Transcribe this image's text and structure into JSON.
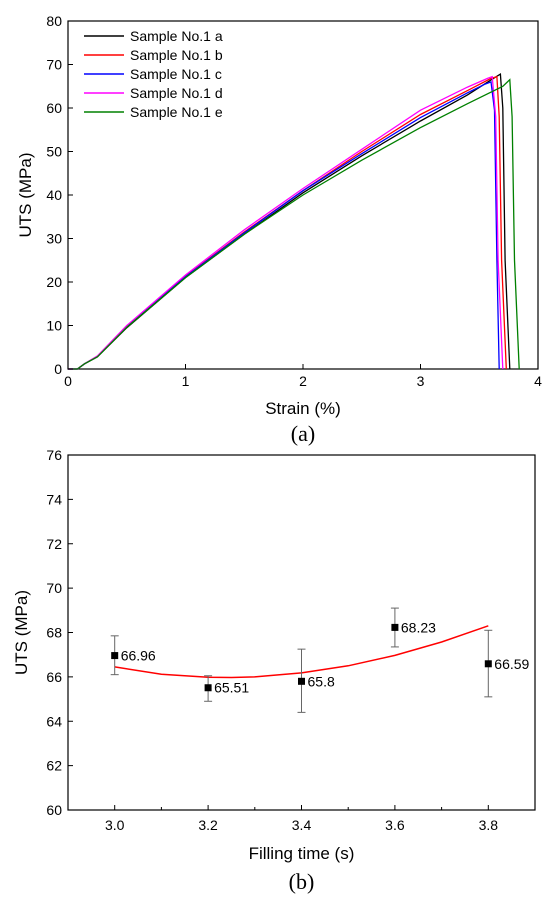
{
  "chart_data": [
    {
      "type": "line",
      "caption": "(a)",
      "xlabel": "Strain (%)",
      "ylabel": "UTS (MPa)",
      "xlim": [
        0,
        4
      ],
      "ylim": [
        0,
        80
      ],
      "xticks": [
        0,
        1,
        2,
        3,
        4
      ],
      "yticks": [
        0,
        10,
        20,
        30,
        40,
        50,
        60,
        70,
        80
      ],
      "grid": false,
      "legend_position": "top-left",
      "series": [
        {
          "name": "Sample No.1 a",
          "color": "#000000",
          "x": [
            0.0,
            0.08,
            0.14,
            0.25,
            0.5,
            1.0,
            1.5,
            2.0,
            2.5,
            3.0,
            3.4,
            3.62,
            3.68,
            3.7,
            3.72,
            3.76
          ],
          "y": [
            0.0,
            0.0,
            1.2,
            2.8,
            9.5,
            21.0,
            31.0,
            40.5,
            49.0,
            57.0,
            63.0,
            66.8,
            67.8,
            60.0,
            25.0,
            0.0
          ]
        },
        {
          "name": "Sample No.1 b",
          "color": "#ff0000",
          "x": [
            0.0,
            0.08,
            0.14,
            0.25,
            0.5,
            1.0,
            1.5,
            2.0,
            2.5,
            3.0,
            3.4,
            3.6,
            3.65,
            3.67,
            3.69,
            3.73
          ],
          "y": [
            0.0,
            0.0,
            1.2,
            2.9,
            9.8,
            21.3,
            31.5,
            41.0,
            50.0,
            58.5,
            64.0,
            66.8,
            67.2,
            58.0,
            25.0,
            0.0
          ]
        },
        {
          "name": "Sample No.1 c",
          "color": "#0000ff",
          "x": [
            0.0,
            0.08,
            0.14,
            0.25,
            0.5,
            1.0,
            1.5,
            2.0,
            2.5,
            3.0,
            3.4,
            3.55,
            3.6,
            3.63,
            3.65,
            3.67
          ],
          "y": [
            0.0,
            0.0,
            1.2,
            2.9,
            9.7,
            21.2,
            31.3,
            41.0,
            49.5,
            57.8,
            63.5,
            65.5,
            66.0,
            59.5,
            25.0,
            0.0
          ]
        },
        {
          "name": "Sample No.1 d",
          "color": "#ff00ff",
          "x": [
            0.0,
            0.08,
            0.14,
            0.25,
            0.5,
            1.0,
            1.5,
            2.0,
            2.5,
            3.0,
            3.4,
            3.57,
            3.61,
            3.64,
            3.66,
            3.7
          ],
          "y": [
            0.0,
            0.0,
            1.2,
            3.0,
            10.0,
            21.6,
            32.0,
            41.5,
            50.5,
            59.5,
            64.8,
            66.8,
            67.2,
            58.0,
            25.0,
            0.0
          ]
        },
        {
          "name": "Sample No.1 e",
          "color": "#008000",
          "x": [
            0.0,
            0.08,
            0.14,
            0.25,
            0.5,
            1.0,
            1.5,
            2.0,
            2.5,
            3.0,
            3.4,
            3.7,
            3.76,
            3.78,
            3.8,
            3.84
          ],
          "y": [
            0.0,
            0.0,
            1.2,
            2.8,
            9.6,
            21.0,
            31.0,
            40.0,
            48.0,
            55.5,
            61.0,
            65.0,
            66.5,
            58.0,
            25.0,
            0.0
          ]
        }
      ]
    },
    {
      "type": "scatter",
      "caption": "(b)",
      "xlabel": "Filling time (s)",
      "ylabel": "UTS (MPa)",
      "xlim": [
        2.9,
        3.9
      ],
      "ylim": [
        60,
        76
      ],
      "xticks": [
        3.0,
        3.2,
        3.4,
        3.6,
        3.8
      ],
      "xtick_labels": [
        "3.0",
        "3.2",
        "3.4",
        "3.6",
        "3.8"
      ],
      "yticks": [
        60,
        62,
        64,
        66,
        68,
        70,
        72,
        74,
        76
      ],
      "grid": false,
      "points": {
        "x": [
          3.0,
          3.2,
          3.4,
          3.6,
          3.8
        ],
        "y": [
          66.96,
          65.51,
          65.8,
          68.23,
          66.59
        ],
        "labels": [
          "66.96",
          "65.51",
          "65.8",
          "68.23",
          "66.59"
        ],
        "err_low": [
          66.1,
          64.9,
          64.4,
          67.35,
          65.1
        ],
        "err_high": [
          67.85,
          66.05,
          67.25,
          69.1,
          68.1
        ],
        "color": "#000000"
      },
      "fit": {
        "color": "#ff0000",
        "x": [
          3.0,
          3.1,
          3.2,
          3.25,
          3.3,
          3.4,
          3.5,
          3.6,
          3.7,
          3.8
        ],
        "y": [
          66.45,
          66.12,
          65.98,
          65.97,
          66.0,
          66.18,
          66.5,
          66.97,
          67.57,
          68.3
        ]
      }
    }
  ]
}
